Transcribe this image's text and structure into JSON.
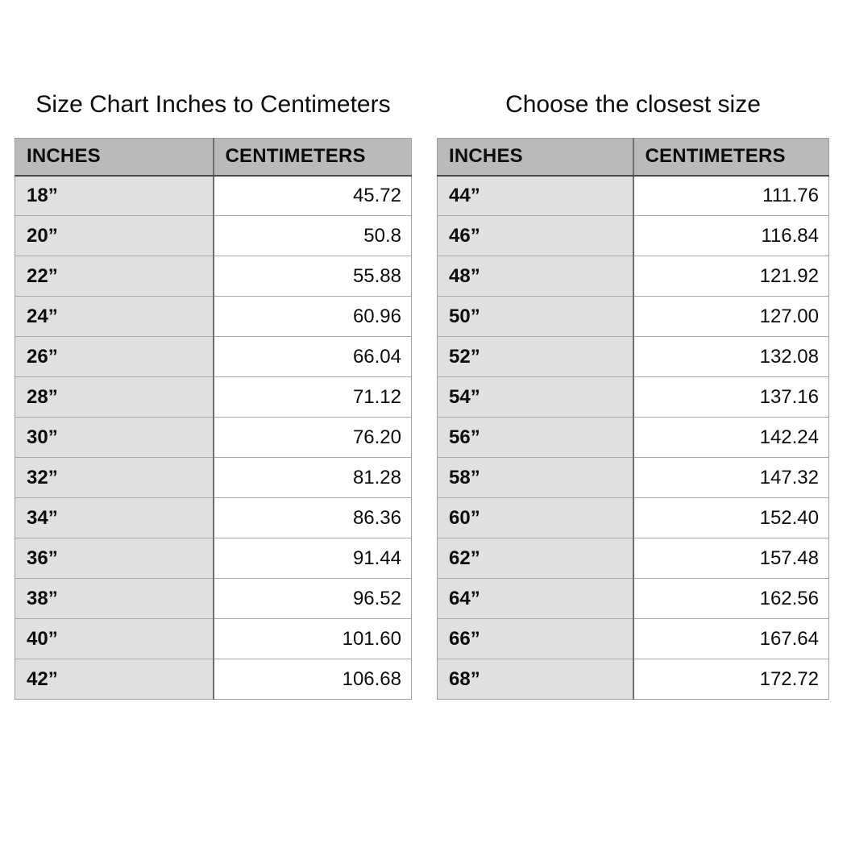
{
  "page": {
    "background": "#ffffff"
  },
  "colors": {
    "header_bg": "#bababa",
    "label_column_bg": "#e0e0e0",
    "value_column_bg": "#ffffff",
    "header_underline": "#4a4a4a",
    "row_border": "#a8a8a8",
    "column_divider": "#6f6f6f",
    "outer_border": "#9e9e9e",
    "text": "#0d0d0d"
  },
  "chart_data": [
    {
      "type": "table",
      "title": "Size Chart Inches to Centimeters",
      "columns": [
        "INCHES",
        "CENTIMETERS"
      ],
      "rows": [
        {
          "in": "18”",
          "cm": "45.72"
        },
        {
          "in": "20”",
          "cm": "50.8"
        },
        {
          "in": "22”",
          "cm": "55.88"
        },
        {
          "in": "24”",
          "cm": "60.96"
        },
        {
          "in": "26”",
          "cm": "66.04"
        },
        {
          "in": "28”",
          "cm": "71.12"
        },
        {
          "in": "30”",
          "cm": "76.20"
        },
        {
          "in": "32”",
          "cm": "81.28"
        },
        {
          "in": "34”",
          "cm": "86.36"
        },
        {
          "in": "36”",
          "cm": "91.44"
        },
        {
          "in": "38”",
          "cm": "96.52"
        },
        {
          "in": "40”",
          "cm": "101.60"
        },
        {
          "in": "42”",
          "cm": "106.68"
        }
      ]
    },
    {
      "type": "table",
      "title": "Choose the closest size",
      "columns": [
        "INCHES",
        "CENTIMETERS"
      ],
      "rows": [
        {
          "in": "44”",
          "cm": "111.76"
        },
        {
          "in": "46”",
          "cm": "116.84"
        },
        {
          "in": "48”",
          "cm": "121.92"
        },
        {
          "in": "50”",
          "cm": "127.00"
        },
        {
          "in": "52”",
          "cm": "132.08"
        },
        {
          "in": "54”",
          "cm": "137.16"
        },
        {
          "in": "56”",
          "cm": "142.24"
        },
        {
          "in": "58”",
          "cm": "147.32"
        },
        {
          "in": "60”",
          "cm": "152.40"
        },
        {
          "in": "62”",
          "cm": "157.48"
        },
        {
          "in": "64”",
          "cm": "162.56"
        },
        {
          "in": "66”",
          "cm": "167.64"
        },
        {
          "in": "68”",
          "cm": "172.72"
        }
      ]
    }
  ]
}
